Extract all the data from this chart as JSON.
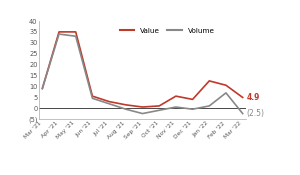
{
  "x_labels": [
    "Mar '21",
    "Apr '21",
    "May '21",
    "Jun '21",
    "Jul '21",
    "Aug '21",
    "Sep '21",
    "Oct '21",
    "Nov '21",
    "Dec '21",
    "Jan '22",
    "Feb '22",
    "Mar '22"
  ],
  "value_data": [
    9.0,
    35.0,
    35.0,
    5.5,
    3.0,
    1.5,
    0.5,
    1.0,
    5.5,
    4.0,
    12.5,
    10.5,
    4.9
  ],
  "volume_data": [
    9.0,
    34.0,
    33.0,
    4.5,
    2.0,
    -0.5,
    -2.5,
    -1.0,
    0.5,
    -0.5,
    1.0,
    7.0,
    -2.5
  ],
  "value_color": "#C0392B",
  "volume_color": "#888888",
  "ylim": [
    -5,
    40
  ],
  "yticks": [
    -5,
    0,
    5,
    10,
    15,
    20,
    25,
    30,
    35,
    40
  ],
  "ytick_labels": [
    "(5)",
    "0",
    "5",
    "10",
    "15",
    "20",
    "25",
    "30",
    "35",
    "40"
  ],
  "end_label_value": "4.9",
  "end_label_volume": "(2.5)",
  "bg_color": "#ffffff",
  "legend_value": "Value",
  "legend_volume": "Volume",
  "linewidth": 1.2
}
